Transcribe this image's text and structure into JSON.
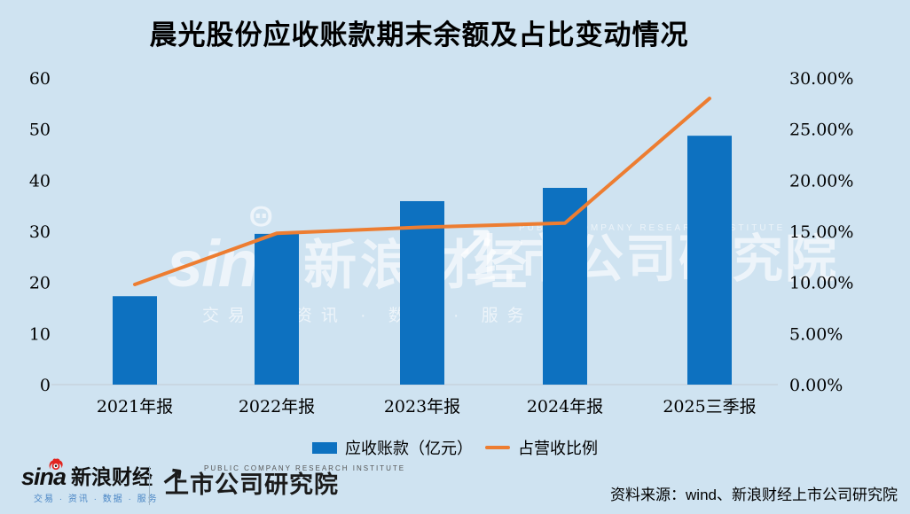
{
  "chart_data": {
    "type": "bar",
    "title": "晨光股份应收账款期末余额及占比变动情况",
    "categories": [
      "2021年报",
      "2022年报",
      "2023年报",
      "2024年报",
      "2025三季报"
    ],
    "series": [
      {
        "name": "应收账款（亿元）",
        "type": "bar",
        "axis": "left",
        "values": [
          17.3,
          29.5,
          35.9,
          38.5,
          48.7
        ],
        "color": "#0d71c0"
      },
      {
        "name": "占营收比例",
        "type": "line",
        "axis": "right",
        "values": [
          9.8,
          14.8,
          15.4,
          15.8,
          28.0
        ],
        "color": "#ed7d31"
      }
    ],
    "left_axis": {
      "min": 0,
      "max": 60,
      "ticks": [
        "0",
        "10",
        "20",
        "30",
        "40",
        "50",
        "60"
      ]
    },
    "right_axis": {
      "min": 0,
      "max": 30,
      "ticks": [
        "0.00%",
        "5.00%",
        "10.00%",
        "15.00%",
        "20.00%",
        "25.00%",
        "30.00%"
      ]
    },
    "grid": false,
    "legend_position": "bottom",
    "background_color": "#cfe3f1",
    "axis_line_color": "#c3cbd3"
  },
  "legend": {
    "bar_label": "应收账款（亿元）",
    "line_label": "占营收比例"
  },
  "watermarks": {
    "sina_word": "sina",
    "sina_cn": "新浪财经",
    "sina_slogan": "交易 · 资讯 · 数据 · 服务",
    "pcri_en": "PUBLIC COMPANY RESEARCH INSTITUTE",
    "pcri_cn": "上市公司研究院"
  },
  "footer": {
    "sina_word": "sina",
    "sina_cn": "新浪财经",
    "sina_slogan": "交易 · 资讯 · 数据 · 服务",
    "pcri_en": "PUBLIC COMPANY RESEARCH INSTITUTE",
    "pcri_cn": "上市公司研究院",
    "source": "资料来源：wind、新浪财经上市公司研究院"
  }
}
